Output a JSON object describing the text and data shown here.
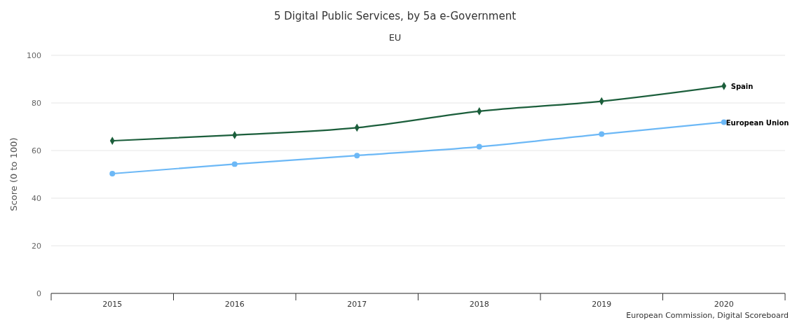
{
  "chart_data": {
    "type": "line",
    "title": "5 Digital Public Services, by 5a e-Government",
    "subtitle": "EU",
    "ylabel": "Score (0 to 100)",
    "categories": [
      "2015",
      "2016",
      "2017",
      "2018",
      "2019",
      "2020"
    ],
    "series": [
      {
        "name": "Spain",
        "color": "#1b5e3b",
        "marker": "diamond",
        "values": [
          64.1,
          66.5,
          69.6,
          76.5,
          80.7,
          87.1
        ]
      },
      {
        "name": "European Union",
        "color": "#6cb8f6",
        "marker": "circle",
        "values": [
          50.3,
          54.3,
          57.9,
          61.6,
          66.9,
          71.9
        ]
      }
    ],
    "ylim": [
      0,
      100
    ],
    "yticks": [
      0,
      20,
      40,
      60,
      80,
      100
    ],
    "grid": "y",
    "legend": false,
    "annotations": [
      "European Commission, Digital Scoreboard"
    ]
  }
}
